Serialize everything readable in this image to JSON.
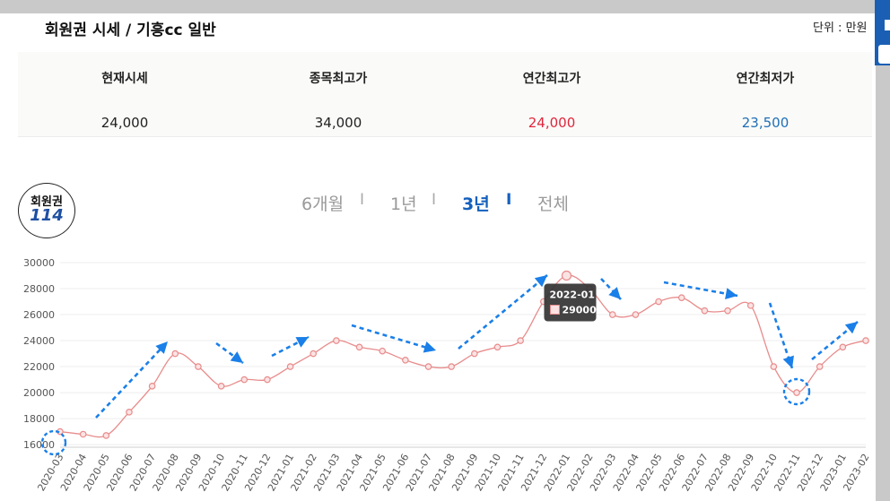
{
  "header": {
    "title": "회원권 시세 / 기흥cc 일반",
    "unit": "단위 : 만원"
  },
  "summary": [
    {
      "label": "현재시세",
      "value": "24,000",
      "color": "#222222"
    },
    {
      "label": "종목최고가",
      "value": "34,000",
      "color": "#222222"
    },
    {
      "label": "연간최고가",
      "value": "24,000",
      "color": "#e0263c"
    },
    {
      "label": "연간최저가",
      "value": "23,500",
      "color": "#1f6fb8"
    }
  ],
  "logo": {
    "top": "회원권",
    "number": "114"
  },
  "period_tabs": [
    {
      "label": "6개월",
      "active": false
    },
    {
      "label": "1년",
      "active": false
    },
    {
      "label": "3년",
      "active": true
    },
    {
      "label": "전체",
      "active": false
    }
  ],
  "period_separator": "I",
  "colors": {
    "line": "#e88c8c",
    "accent": "#1560bd",
    "arrow": "#1a7fe8",
    "tooltip_bg": "#333333"
  },
  "chart_data": {
    "type": "line",
    "x": [
      "2020-03",
      "2020-04",
      "2020-05",
      "2020-06",
      "2020-07",
      "2020-08",
      "2020-09",
      "2020-10",
      "2020-11",
      "2020-12",
      "2021-01",
      "2021-02",
      "2021-03",
      "2021-04",
      "2021-05",
      "2021-06",
      "2021-07",
      "2021-08",
      "2021-09",
      "2021-10",
      "2021-11",
      "2021-12",
      "2022-01",
      "2022-02",
      "2022-03",
      "2022-04",
      "2022-05",
      "2022-06",
      "2022-07",
      "2022-08",
      "2022-09",
      "2022-10",
      "2022-11",
      "2022-12",
      "2023-01",
      "2023-02"
    ],
    "series": [
      {
        "values": [
          17000,
          16800,
          16700,
          18500,
          20500,
          23000,
          22000,
          20500,
          21000,
          21000,
          22000,
          23000,
          24000,
          23500,
          23200,
          22500,
          22000,
          22000,
          23000,
          23500,
          24000,
          27000,
          29000,
          28000,
          26000,
          26000,
          27000,
          27300,
          26300,
          26300,
          26700,
          22000,
          20000,
          22000,
          23500,
          24000
        ]
      }
    ],
    "y_ticks": [
      16000,
      18000,
      20000,
      22000,
      24000,
      26000,
      28000,
      30000
    ],
    "ylim": [
      15800,
      30000
    ],
    "grid": true,
    "tooltip": {
      "x": "2022-01",
      "value": "29000"
    }
  }
}
